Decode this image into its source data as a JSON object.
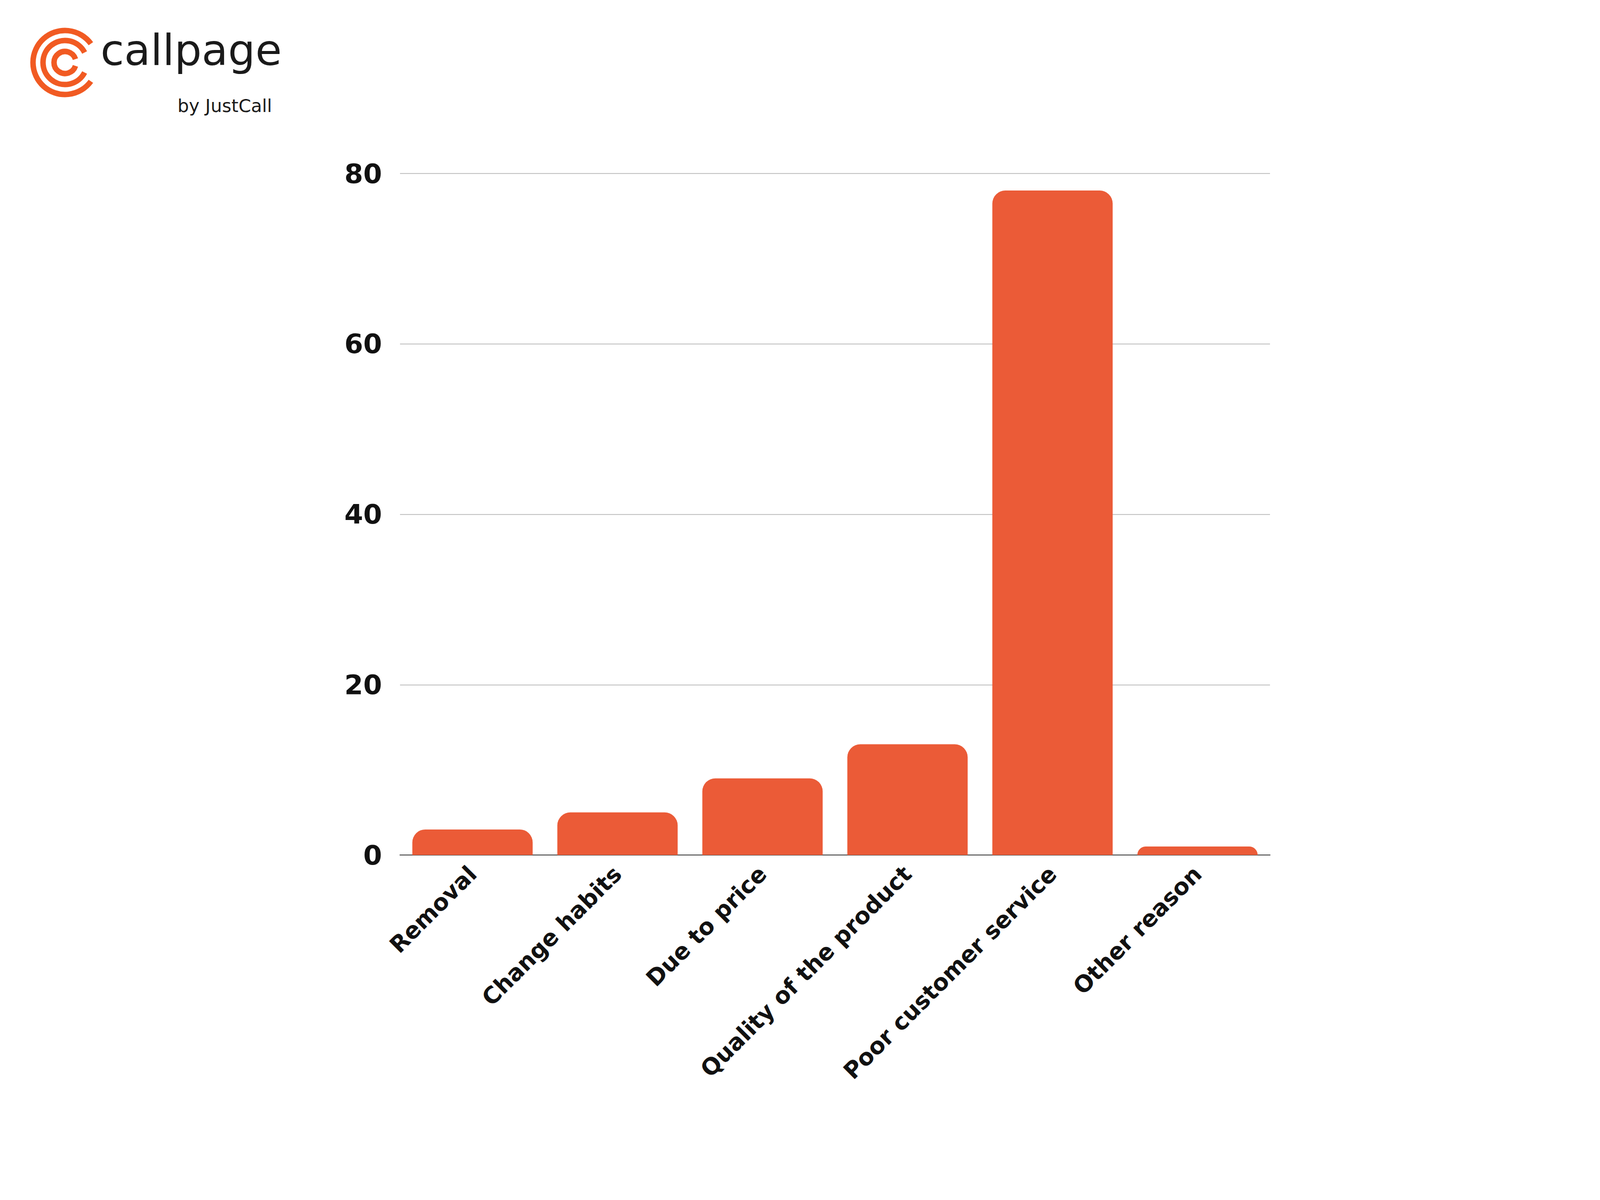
{
  "chart_data": {
    "type": "bar",
    "title": "callpage",
    "subtitle": "by JustCall",
    "categories": [
      "Removal",
      "Change habits",
      "Due to price",
      "Quality of the product",
      "Poor customer service",
      "Other reason"
    ],
    "values": [
      3,
      5,
      9,
      13,
      78,
      1
    ],
    "color": "#eb5b37",
    "ylim": [
      0,
      80
    ],
    "yticks": [
      0,
      20,
      40,
      60,
      80
    ],
    "grid": true
  }
}
